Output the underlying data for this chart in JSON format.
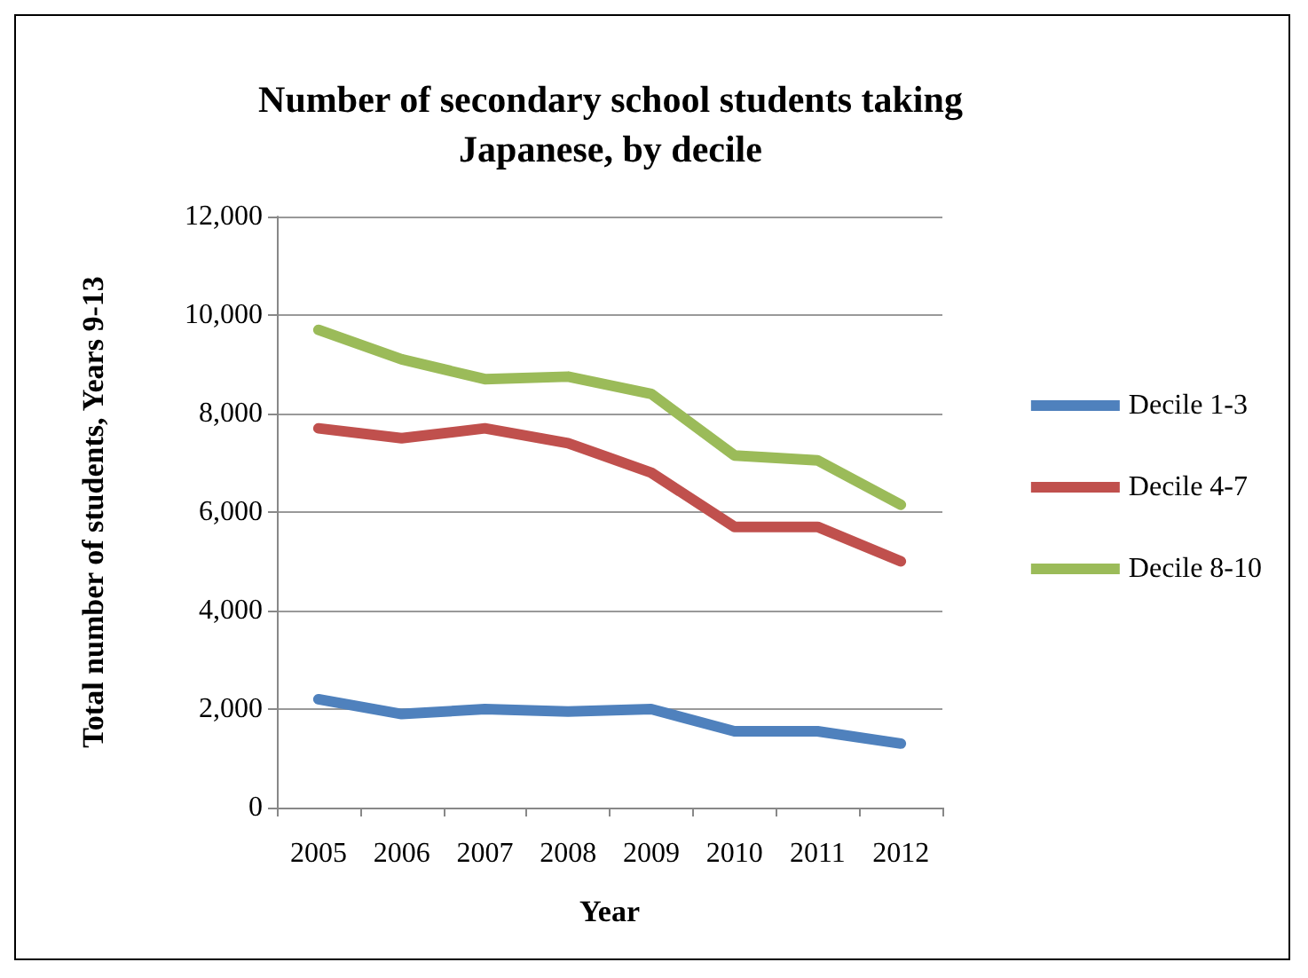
{
  "chart_data": {
    "type": "line",
    "title": "Number of secondary school students taking\nJapanese, by decile",
    "xlabel": "Year",
    "ylabel": "Total number of students, Years 9-13",
    "categories": [
      "2005",
      "2006",
      "2007",
      "2008",
      "2009",
      "2010",
      "2011",
      "2012"
    ],
    "series": [
      {
        "name": "Decile 1-3",
        "color": "#4f81bd",
        "values": [
          2200,
          1900,
          2000,
          1950,
          2000,
          1550,
          1550,
          1300
        ]
      },
      {
        "name": "Decile 4-7",
        "color": "#c0504d",
        "values": [
          7700,
          7500,
          7700,
          7400,
          6800,
          5700,
          5700,
          5000
        ]
      },
      {
        "name": "Decile 8-10",
        "color": "#9bbb59",
        "values": [
          9700,
          9100,
          8700,
          8750,
          8400,
          7150,
          7050,
          6150
        ]
      }
    ],
    "ylim": [
      0,
      12000
    ],
    "yticks": [
      {
        "value": 0,
        "label": "0"
      },
      {
        "value": 2000,
        "label": "2,000"
      },
      {
        "value": 4000,
        "label": "4,000"
      },
      {
        "value": 6000,
        "label": "6,000"
      },
      {
        "value": 8000,
        "label": "8,000"
      },
      {
        "value": 10000,
        "label": "10,000"
      },
      {
        "value": 12000,
        "label": "12,000"
      }
    ],
    "grid": "y",
    "legend": "right",
    "marker": "none",
    "line_style": "solid"
  }
}
